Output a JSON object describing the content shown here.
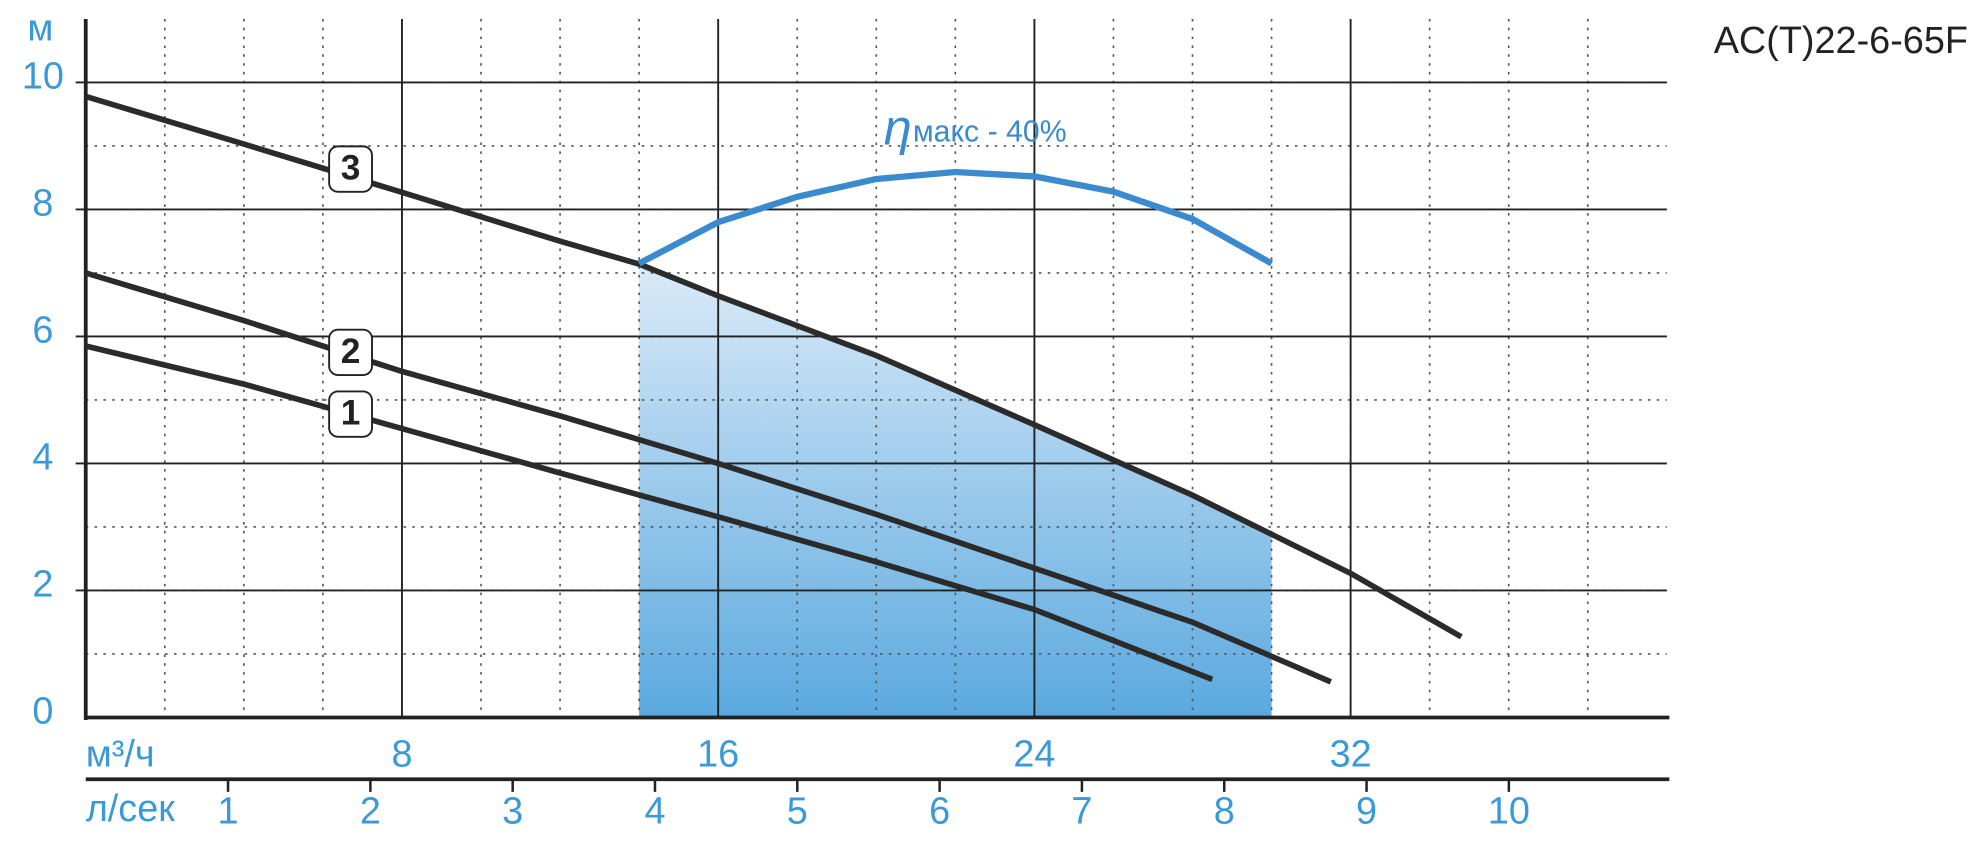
{
  "chart_data": {
    "type": "line",
    "title": "AC(T)22-6-65F",
    "y_unit": "м",
    "x_unit": "м³/ч",
    "x2_unit": "л/сек",
    "xlim": [
      0,
      40
    ],
    "ylim": [
      0,
      11
    ],
    "xticks": [
      8,
      16,
      24,
      32
    ],
    "yticks": [
      0,
      2,
      4,
      6,
      8,
      10
    ],
    "x2lim": [
      0,
      11.11
    ],
    "x2ticks": [
      1,
      2,
      3,
      4,
      5,
      6,
      7,
      8,
      9,
      10
    ],
    "x_minor_step": 2,
    "y_minor_step": 1,
    "grid": true,
    "series": [
      {
        "name": "1",
        "color": "#2b2b2b",
        "x": [
          0,
          4,
          8,
          12,
          16,
          20,
          24,
          28.5
        ],
        "values": [
          5.85,
          5.25,
          4.55,
          3.85,
          3.16,
          2.45,
          1.7,
          0.6
        ]
      },
      {
        "name": "2",
        "color": "#2b2b2b",
        "x": [
          0,
          4,
          8,
          12,
          16,
          20,
          24,
          28,
          31.5
        ],
        "values": [
          7.0,
          6.25,
          5.45,
          4.75,
          4.0,
          3.2,
          2.35,
          1.5,
          0.56
        ]
      },
      {
        "name": "3",
        "color": "#2b2b2b",
        "x": [
          0,
          4,
          8,
          12,
          14,
          16,
          20,
          24,
          28,
          32,
          34.8
        ],
        "values": [
          9.78,
          9.03,
          8.27,
          7.5,
          7.14,
          6.64,
          5.7,
          4.61,
          3.5,
          2.27,
          1.27
        ]
      }
    ],
    "efficiency": {
      "symbol": "η",
      "label": "макс - 40%",
      "color": "#3a8ad0",
      "x": [
        14,
        16,
        18,
        20,
        22,
        24,
        26,
        28,
        30
      ],
      "values": [
        7.15,
        7.8,
        8.2,
        8.48,
        8.59,
        8.52,
        8.28,
        7.85,
        7.15
      ]
    },
    "operating_range": [
      14,
      30
    ]
  }
}
